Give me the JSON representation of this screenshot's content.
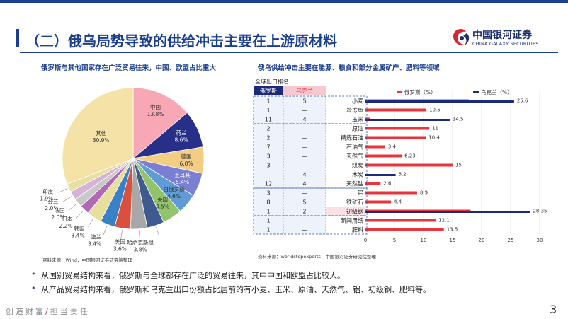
{
  "header": {
    "title": "（二）俄乌局势导致的供给冲击主要在上游原材料",
    "logo_cn": "中国银河证券",
    "logo_en": "CHINA GALAXY SECURITIES"
  },
  "left_panel": {
    "subtitle": "俄罗斯与其他国家存在广泛贸易往来，中国、欧盟占比重大",
    "source": "资料来源：Wind，中国银河证券研究院整理"
  },
  "right_panel": {
    "subtitle": "俄乌供给冲击主要在能源、粮食和部分金属矿产、肥料等领域",
    "source": "资料来源：worldstopexports，中国银河证券研究院整理",
    "rank_header": "全球出口排名",
    "col_russia": "俄罗斯",
    "col_ukraine": "乌克兰"
  },
  "bullets": [
    "从国别贸易结构来看，俄罗斯与全球都存在广泛的贸易往来，其中中国和欧盟占比较大。",
    "从产品贸易结构来看，俄罗斯和乌克兰出口份额占比居前的有小麦、玉米、原油、天然气、铝、初级钢、肥料等。"
  ],
  "footer": {
    "left": "创造财富",
    "slash": "/",
    "right": "担当责任",
    "page": "3"
  },
  "colors": {
    "brand_blue": "#1b3f8f",
    "russia": "#e8343d",
    "ukraine": "#1b2a7a",
    "dashed": "#2f5aa8",
    "pink_band": "#f6c9d0"
  },
  "chart_data": [
    {
      "type": "pie",
      "labels": [
        "中国",
        "荷兰",
        "德国",
        "土耳其",
        "白俄罗斯",
        "英国",
        "意大利",
        "哈萨克斯坦",
        "美国",
        "波兰",
        "韩国",
        "日本",
        "法国",
        "芬兰",
        "印度",
        "其他"
      ],
      "values": [
        13.8,
        8.6,
        6.0,
        5.4,
        4.6,
        4.5,
        3.9,
        3.8,
        3.6,
        3.4,
        3.4,
        2.2,
        2.0,
        2.0,
        1.9,
        30.9
      ],
      "value_labels": [
        "13.8%",
        "8.6%",
        "6.0%",
        "5.4%",
        "4.6%",
        "4.5%",
        "3.9%",
        "3.8%",
        "3.6%",
        "3.4%",
        "3.4%",
        "2.2%",
        "2.0%",
        "2.0%",
        "1.9%",
        "30.9%"
      ],
      "colors": [
        "#f7a8b4",
        "#272f88",
        "#f2cd83",
        "#7b7fd1",
        "#5f9bd5",
        "#93c36a",
        "#3f5a8e",
        "#a8a8a8",
        "#d9503f",
        "#3a80c9",
        "#e8de9d",
        "#b06ab3",
        "#c8c8c8",
        "#d8b3d8",
        "#e8e0a0",
        "#f4e2a6"
      ]
    },
    {
      "type": "bar",
      "orientation": "horizontal",
      "categories": [
        "小麦",
        "冷冻鱼",
        "玉米",
        "原油",
        "精炼石油",
        "石油气",
        "天然气",
        "煤炭",
        "木炭",
        "天然铀",
        "铝",
        "铁矿石",
        "初级钢",
        "新闻用纸",
        "肥料"
      ],
      "series": [
        {
          "name": "俄罗斯（%）",
          "values": [
            17.8,
            10.5,
            0.8,
            11,
            10.4,
            3.4,
            6.23,
            15,
            0,
            2.6,
            8.9,
            4.4,
            18.1,
            12.1,
            13.5
          ]
        },
        {
          "name": "乌克兰（%）",
          "values": [
            25.6,
            0,
            14.5,
            0,
            0,
            0,
            0,
            0,
            5.2,
            0,
            0,
            0,
            28.35,
            0,
            0
          ]
        }
      ],
      "data_labels": [
        "25.6",
        "10.5",
        "14.5",
        "11",
        "10.4",
        "3.4",
        "6.23",
        "15",
        "5.2",
        "2.6",
        "8.9",
        "4.4",
        "28.35",
        "12.1",
        "13.5"
      ],
      "rank_russia": [
        "1",
        "1",
        "11",
        "2",
        "2",
        "7",
        "3",
        "3",
        "—",
        "12",
        "3",
        "8",
        "1",
        "1",
        "1"
      ],
      "rank_ukraine": [
        "5",
        "—",
        "4",
        "—",
        "—",
        "—",
        "—",
        "—",
        "4",
        "4",
        "—",
        "5",
        "2",
        "—",
        "—"
      ],
      "xlim": [
        0,
        30
      ],
      "xticks": [
        "0",
        "5",
        "10",
        "15",
        "20",
        "25",
        "30"
      ]
    }
  ]
}
